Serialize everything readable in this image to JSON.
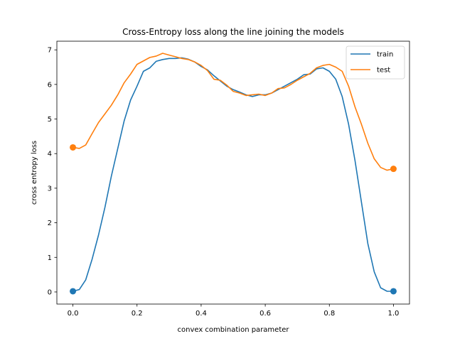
{
  "chart_data": {
    "type": "line",
    "title": "Cross-Entropy loss along the line joining the models",
    "xlabel": "convex combination parameter",
    "ylabel": "cross entropy loss",
    "xlim": [
      -0.05,
      1.05
    ],
    "ylim": [
      -0.35,
      7.25
    ],
    "xticks": [
      {
        "value": 0.0,
        "label": "0.0"
      },
      {
        "value": 0.2,
        "label": "0.2"
      },
      {
        "value": 0.4,
        "label": "0.4"
      },
      {
        "value": 0.6,
        "label": "0.6"
      },
      {
        "value": 0.8,
        "label": "0.8"
      },
      {
        "value": 1.0,
        "label": "1.0"
      }
    ],
    "yticks": [
      {
        "value": 0,
        "label": "0"
      },
      {
        "value": 1,
        "label": "1"
      },
      {
        "value": 2,
        "label": "2"
      },
      {
        "value": 3,
        "label": "3"
      },
      {
        "value": 4,
        "label": "4"
      },
      {
        "value": 5,
        "label": "5"
      },
      {
        "value": 6,
        "label": "6"
      },
      {
        "value": 7,
        "label": "7"
      }
    ],
    "grid": false,
    "legend": "upper-right",
    "x": [
      0.0,
      0.02,
      0.04,
      0.06,
      0.08,
      0.1,
      0.12,
      0.14,
      0.16,
      0.18,
      0.2,
      0.22,
      0.24,
      0.26,
      0.28,
      0.3,
      0.32,
      0.34,
      0.36,
      0.38,
      0.4,
      0.42,
      0.44,
      0.46,
      0.48,
      0.5,
      0.52,
      0.54,
      0.56,
      0.58,
      0.6,
      0.62,
      0.64,
      0.66,
      0.68,
      0.7,
      0.72,
      0.74,
      0.76,
      0.78,
      0.8,
      0.82,
      0.84,
      0.86,
      0.88,
      0.9,
      0.92,
      0.94,
      0.96,
      0.98,
      1.0
    ],
    "series": [
      {
        "name": "train",
        "color": "#1f77b4",
        "values": [
          0.02,
          0.07,
          0.35,
          0.95,
          1.65,
          2.45,
          3.35,
          4.15,
          4.95,
          5.55,
          5.95,
          6.38,
          6.48,
          6.67,
          6.72,
          6.75,
          6.75,
          6.77,
          6.73,
          6.65,
          6.52,
          6.42,
          6.25,
          6.1,
          5.95,
          5.85,
          5.78,
          5.7,
          5.65,
          5.7,
          5.7,
          5.75,
          5.85,
          5.95,
          6.05,
          6.15,
          6.28,
          6.3,
          6.45,
          6.48,
          6.38,
          6.15,
          5.65,
          4.85,
          3.8,
          2.6,
          1.4,
          0.58,
          0.12,
          0.02,
          0.02
        ],
        "markers": [
          {
            "x": 0.0,
            "y": 0.02
          },
          {
            "x": 1.0,
            "y": 0.02
          }
        ]
      },
      {
        "name": "test",
        "color": "#ff7f0e",
        "values": [
          4.18,
          4.15,
          4.25,
          4.58,
          4.9,
          5.15,
          5.4,
          5.7,
          6.05,
          6.3,
          6.58,
          6.68,
          6.78,
          6.82,
          6.9,
          6.85,
          6.8,
          6.75,
          6.72,
          6.65,
          6.55,
          6.4,
          6.15,
          6.12,
          5.98,
          5.8,
          5.75,
          5.68,
          5.7,
          5.72,
          5.68,
          5.75,
          5.88,
          5.9,
          6.0,
          6.12,
          6.22,
          6.32,
          6.48,
          6.55,
          6.58,
          6.5,
          6.38,
          5.95,
          5.35,
          4.85,
          4.3,
          3.85,
          3.6,
          3.52,
          3.56
        ],
        "markers": [
          {
            "x": 0.0,
            "y": 4.18
          },
          {
            "x": 1.0,
            "y": 3.56
          }
        ]
      }
    ]
  }
}
